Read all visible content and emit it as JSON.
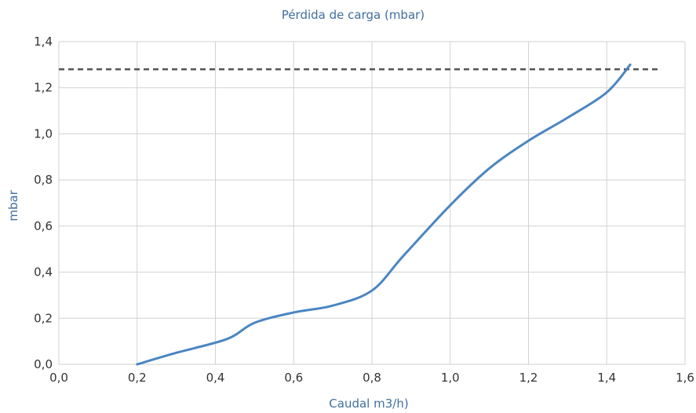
{
  "chart_data": {
    "type": "line",
    "title": "Pérdida de carga (mbar)",
    "xlabel": "Caudal m3/h)",
    "ylabel": "mbar",
    "xlim": [
      0,
      1.6
    ],
    "ylim": [
      0,
      1.4
    ],
    "x_ticks": [
      0,
      0.2,
      0.4,
      0.6,
      0.8,
      1.0,
      1.2,
      1.4,
      1.6
    ],
    "y_ticks": [
      0,
      0.2,
      0.4,
      0.6,
      0.8,
      1.0,
      1.2,
      1.4
    ],
    "x_tick_labels": [
      "0,0",
      "0,2",
      "0,4",
      "0,6",
      "0,8",
      "1,0",
      "1,2",
      "1,4",
      "1,6"
    ],
    "y_tick_labels": [
      "0,0",
      "0,2",
      "0,4",
      "0,6",
      "0,8",
      "1,0",
      "1,2",
      "1,4"
    ],
    "grid": true,
    "series": [
      {
        "color": "#4a86c2",
        "x": [
          0.2,
          0.3,
          0.43,
          0.5,
          0.6,
          0.7,
          0.8,
          0.88,
          1.0,
          1.1,
          1.2,
          1.3,
          1.4,
          1.46
        ],
        "y": [
          0.0,
          0.05,
          0.11,
          0.18,
          0.225,
          0.255,
          0.32,
          0.47,
          0.69,
          0.85,
          0.97,
          1.07,
          1.18,
          1.3
        ]
      }
    ],
    "reference_lines": [
      {
        "y": 1.28,
        "x_start": 0.0,
        "x_end": 1.54,
        "style": "dashed",
        "color": "#555555"
      }
    ]
  }
}
